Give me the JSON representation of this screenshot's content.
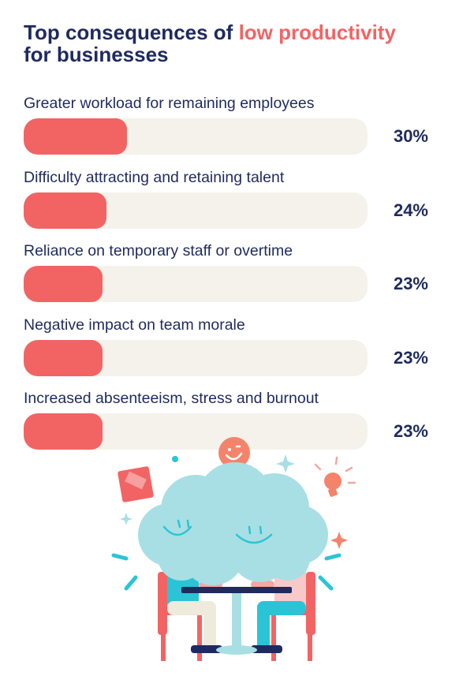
{
  "chart_data": {
    "type": "bar",
    "orientation": "horizontal",
    "title": {
      "line1_prefix": "Top consequences of ",
      "line1_accent": "low productivity",
      "line2": "for businesses"
    },
    "categories": [
      "Greater workload for remaining employees",
      "Difficulty attracting and retaining talent",
      "Reliance on temporary staff or overtime",
      "Negative impact on team morale",
      "Increased absenteeism, stress and burnout"
    ],
    "values": [
      30,
      24,
      23,
      23,
      23
    ],
    "value_labels": [
      "30%",
      "24%",
      "23%",
      "23%",
      "23%"
    ],
    "xlim": [
      0,
      100
    ],
    "grid": false,
    "legend": "none"
  },
  "colors": {
    "title": "#1f2a5e",
    "accent": "#f26464",
    "bar_fill": "#f26464",
    "bar_track": "#f4f2eb",
    "cloud": "#a8dfe4"
  },
  "illustration": {
    "icon_names": [
      "smiley-face-icon",
      "lightbulb-icon",
      "sparkle-icon",
      "sticky-note-icon",
      "cloud-icon",
      "table-icon",
      "chair-icon",
      "person-icon"
    ]
  }
}
